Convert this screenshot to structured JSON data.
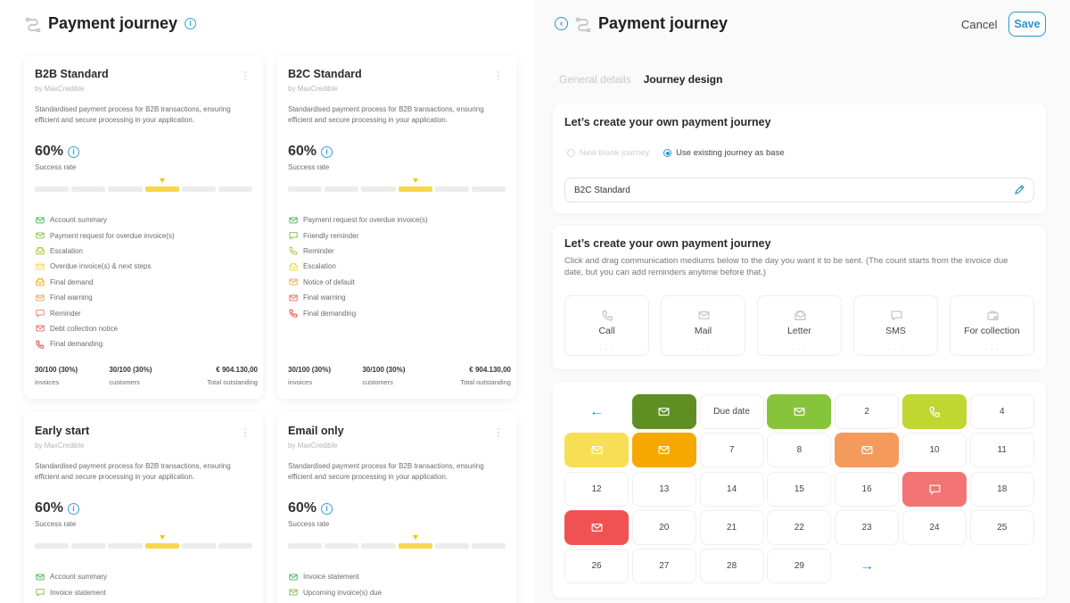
{
  "left": {
    "title": "Payment journey",
    "cards": [
      {
        "title": "B2B Standard",
        "by": "by MaxCredible",
        "description": "Standardised payment process for B2B transactions, ensuring efficient and secure processing in your application.",
        "rate": "60%",
        "rate_label": "Success rate",
        "steps": [
          {
            "label": "Account summary",
            "icon": "mail-icon",
            "color": "#3bb54a"
          },
          {
            "label": "Payment request for overdue invoice(s)",
            "icon": "mail-icon",
            "color": "#7cc043"
          },
          {
            "label": "Escalation",
            "icon": "letter-icon",
            "color": "#a4c639"
          },
          {
            "label": "Overdue invoice(s) & next steps",
            "icon": "mail-icon",
            "color": "#f5d33a"
          },
          {
            "label": "Final demand",
            "icon": "letter-icon",
            "color": "#f2b100"
          },
          {
            "label": "Final warning",
            "icon": "mail-icon",
            "color": "#f29a4a"
          },
          {
            "label": "Reminder",
            "icon": "sms-icon",
            "color": "#f07a6a"
          },
          {
            "label": "Debt collection notice",
            "icon": "mail-icon",
            "color": "#ee5d5d"
          },
          {
            "label": "Final demanding",
            "icon": "call-icon",
            "color": "#e83b3b"
          }
        ],
        "stats": [
          {
            "value": "30/100 (30%)",
            "label": "invoices"
          },
          {
            "value": "30/100 (30%)",
            "label": "customers"
          },
          {
            "value": "€ 904.130,00",
            "label": "Total outstanding"
          }
        ]
      },
      {
        "title": "B2C Standard",
        "by": "by MaxCredible",
        "description": "Standardised payment process for B2B transactions, ensuring efficient and secure processing in your application.",
        "rate": "60%",
        "rate_label": "Success rate",
        "steps": [
          {
            "label": "Payment request for overdue invoice(s)",
            "icon": "mail-icon",
            "color": "#3bb54a"
          },
          {
            "label": "Friendly reminder",
            "icon": "sms-icon",
            "color": "#7cc043"
          },
          {
            "label": "Reminder",
            "icon": "call-icon",
            "color": "#a4c639"
          },
          {
            "label": "Escalation",
            "icon": "letter-icon",
            "color": "#f5d33a"
          },
          {
            "label": "Notice of default",
            "icon": "mail-icon",
            "color": "#f2a33a"
          },
          {
            "label": "Final warning",
            "icon": "mail-icon",
            "color": "#ee5d5d"
          },
          {
            "label": "Final demanding",
            "icon": "call-icon",
            "color": "#e83b3b"
          }
        ],
        "stats": [
          {
            "value": "30/100 (30%)",
            "label": "invoices"
          },
          {
            "value": "30/100 (30%)",
            "label": "customers"
          },
          {
            "value": "€ 904.130,00",
            "label": "Total outstanding"
          }
        ]
      },
      {
        "title": "Early start",
        "by": "by MaxCredible",
        "description": "Standardised payment process for B2B transactions, ensuring efficient and secure processing in your application.",
        "rate": "60%",
        "rate_label": "Success rate",
        "steps": [
          {
            "label": "Account summary",
            "icon": "mail-icon",
            "color": "#3bb54a"
          },
          {
            "label": "Invoice statement",
            "icon": "sms-icon",
            "color": "#7cc043"
          }
        ]
      },
      {
        "title": "Email only",
        "by": "by MaxCredible",
        "description": "Standardised payment process for B2B transactions, ensuring efficient and secure processing in your application.",
        "rate": "60%",
        "rate_label": "Success rate",
        "steps": [
          {
            "label": "Invoice statement",
            "icon": "mail-icon",
            "color": "#3bb54a"
          },
          {
            "label": "Upcoming invoice(s) due",
            "icon": "mail-icon",
            "color": "#7cc043"
          }
        ]
      }
    ]
  },
  "right": {
    "title": "Payment journey",
    "cancel_label": "Cancel",
    "save_label": "Save",
    "tabs": [
      {
        "label": "General details",
        "active": false
      },
      {
        "label": "Journey design",
        "active": true
      }
    ],
    "base_panel": {
      "title": "Let’s create your own payment journey",
      "option_blank": "New blank journey",
      "option_existing": "Use existing journey as base",
      "selected_value": "B2C Standard"
    },
    "mediums_panel": {
      "title": "Let’s create your own payment journey",
      "subtitle": "Click and drag communication mediums below to the day you want it to be sent. (The count starts from the invoice due date, but you can add reminders anytime before that.)",
      "mediums": [
        {
          "label": "Call",
          "icon": "phone-icon"
        },
        {
          "label": "Mail",
          "icon": "mail-icon"
        },
        {
          "label": "Letter",
          "icon": "letter-icon"
        },
        {
          "label": "SMS",
          "icon": "sms-icon"
        },
        {
          "label": "For collection",
          "icon": "briefcase-icon"
        }
      ]
    },
    "calendar": [
      [
        "←",
        {
          "icon": "mail-icon",
          "color": "#5f8f22"
        },
        "Due date",
        {
          "icon": "mail-icon",
          "color": "#86c43c"
        },
        "2",
        {
          "icon": "phone-icon",
          "color": "#c0d631"
        },
        "4"
      ],
      [
        {
          "icon": "mail-icon",
          "color": "#f8de55"
        },
        {
          "icon": "mail-icon",
          "color": "#f5a800"
        },
        "7",
        "8",
        {
          "icon": "mail-icon",
          "color": "#f49a5d"
        },
        "10",
        "11"
      ],
      [
        "12",
        "13",
        "14",
        "15",
        "16",
        {
          "icon": "sms-icon",
          "color": "#f27474"
        },
        "18"
      ],
      [
        {
          "icon": "mail-icon",
          "color": "#f05252"
        },
        "20",
        "21",
        "22",
        "23",
        "24",
        "25"
      ],
      [
        "26",
        "27",
        "28",
        "29",
        "→"
      ]
    ]
  }
}
